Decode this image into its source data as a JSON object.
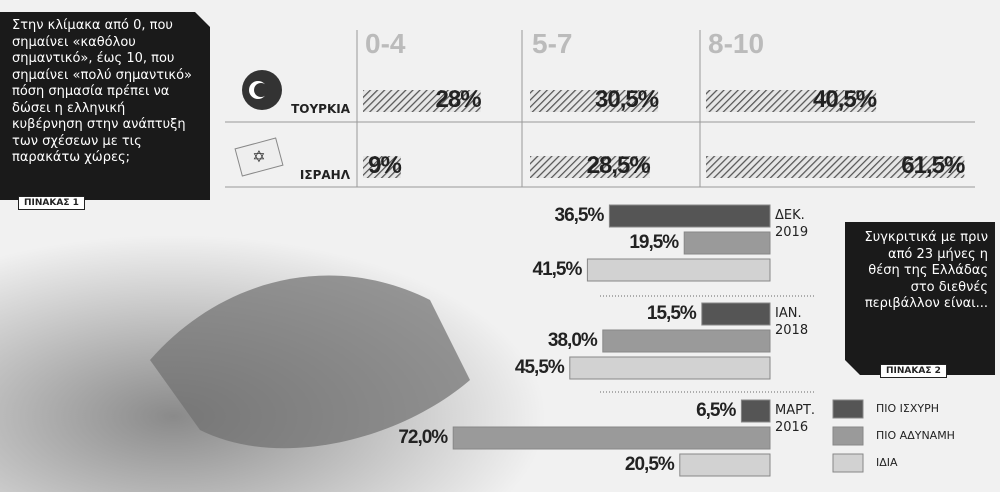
{
  "chart_data": [
    {
      "type": "hatched-bar",
      "title": "Στην κλίμακα από 0, που σημαίνει «καθόλου σημαντικό», έως 10, που σημαίνει «πολύ σημαντικό» πόση σημασία πρέπει να δώσει η ελληνική κυβέρνηση στην ανάπτυξη των σχέσεων με τις παρακάτω χώρες;",
      "label": "ΠΙΝΑΚΑΣ 1",
      "categories": [
        "ΤΟΥΡΚΙΑ",
        "ΙΣΡΑΗΛ"
      ],
      "series": [
        {
          "name": "0-4",
          "color": "#555555",
          "values": [
            28,
            9
          ],
          "value_labels": [
            "28%",
            "9%"
          ]
        },
        {
          "name": "5-7",
          "color": "#555555",
          "values": [
            30.5,
            28.5
          ],
          "value_labels": [
            "30,5%",
            "28,5%"
          ]
        },
        {
          "name": "8-10",
          "color": "#555555",
          "values": [
            40.5,
            61.5
          ],
          "value_labels": [
            "40,5%",
            "61,5%"
          ]
        }
      ]
    },
    {
      "type": "hbar",
      "title": "Συγκριτικά με πριν από 23 μήνες η θέση της Ελλάδας στο διεθνές περιβάλλον είναι...",
      "label": "ΠΙΝΑΚΑΣ 2",
      "categories": [
        "ΔΕΚ. 2019",
        "ΙΑΝ. 2018",
        "ΜΑΡΤ. 2016"
      ],
      "series": [
        {
          "name": "ΠΙΟ ΙΣΧΥΡΗ",
          "color": "#555555",
          "values": [
            36.5,
            15.5,
            6.5
          ],
          "value_labels": [
            "36,5%",
            "15,5%",
            "6,5%"
          ]
        },
        {
          "name": "ΠΙΟ ΑΔΥΝΑΜΗ",
          "color": "#9a9a9a",
          "values": [
            19.5,
            38.0,
            72.0
          ],
          "value_labels": [
            "19,5%",
            "38,0%",
            "72,0%"
          ]
        },
        {
          "name": "ΙΔΙΑ",
          "color": "#d2d2d2",
          "values": [
            41.5,
            45.5,
            20.5
          ],
          "value_labels": [
            "41,5%",
            "45,5%",
            "20,5%"
          ]
        }
      ]
    }
  ]
}
